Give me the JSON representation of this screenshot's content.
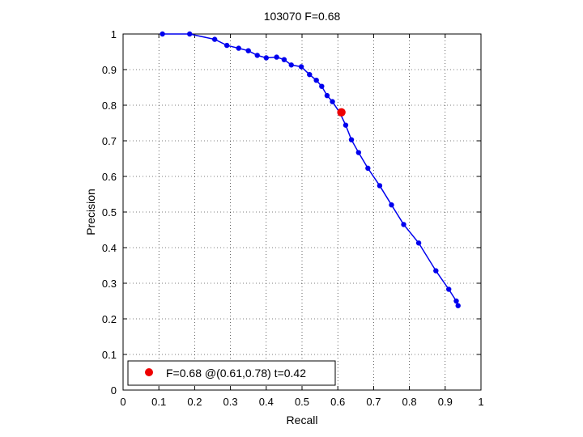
{
  "chart_data": {
    "type": "line",
    "title": "103070 F=0.68",
    "xlabel": "Recall",
    "ylabel": "Precision",
    "xlim": [
      0,
      1
    ],
    "ylim": [
      0,
      1
    ],
    "grid": true,
    "legend_placement": "bottom-left",
    "x_ticks": [
      "0",
      "0.1",
      "0.2",
      "0.3",
      "0.4",
      "0.5",
      "0.6",
      "0.7",
      "0.8",
      "0.9",
      "1"
    ],
    "y_ticks": [
      "0",
      "0.1",
      "0.2",
      "0.3",
      "0.4",
      "0.5",
      "0.6",
      "0.7",
      "0.8",
      "0.9",
      "1"
    ],
    "series": [
      {
        "color": "#0000ee",
        "marker": "circle",
        "points": [
          [
            0.11,
            1.0
          ],
          [
            0.186,
            1.0
          ],
          [
            0.256,
            0.985
          ],
          [
            0.29,
            0.968
          ],
          [
            0.323,
            0.96
          ],
          [
            0.35,
            0.953
          ],
          [
            0.375,
            0.94
          ],
          [
            0.4,
            0.933
          ],
          [
            0.429,
            0.935
          ],
          [
            0.45,
            0.928
          ],
          [
            0.47,
            0.913
          ],
          [
            0.498,
            0.908
          ],
          [
            0.521,
            0.886
          ],
          [
            0.54,
            0.87
          ],
          [
            0.555,
            0.853
          ],
          [
            0.57,
            0.827
          ],
          [
            0.585,
            0.81
          ],
          [
            0.606,
            0.778
          ],
          [
            0.622,
            0.744
          ],
          [
            0.638,
            0.703
          ],
          [
            0.658,
            0.667
          ],
          [
            0.684,
            0.623
          ],
          [
            0.717,
            0.574
          ],
          [
            0.75,
            0.52
          ],
          [
            0.784,
            0.465
          ],
          [
            0.826,
            0.413
          ],
          [
            0.874,
            0.335
          ],
          [
            0.91,
            0.283
          ],
          [
            0.931,
            0.25
          ],
          [
            0.936,
            0.237
          ]
        ]
      }
    ],
    "highlight": {
      "recall": 0.61,
      "precision": 0.78,
      "color": "#ee0000"
    },
    "legend": {
      "label": "F=0.68 @(0.61,0.78) t=0.42",
      "color": "#ee0000"
    }
  }
}
